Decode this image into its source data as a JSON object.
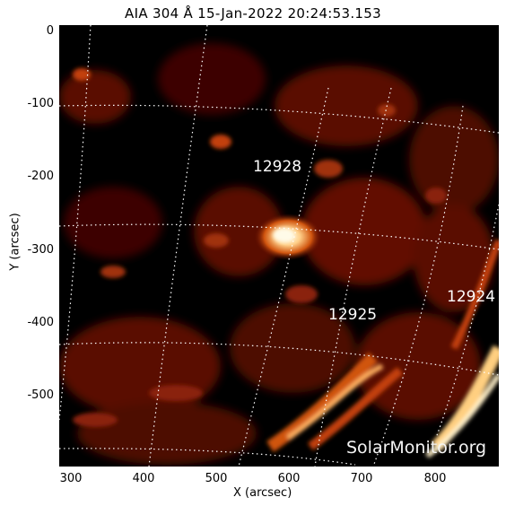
{
  "title": "AIA 304 Å 15-Jan-2022 20:24:53.153",
  "axes": {
    "x_label": "X (arcsec)",
    "y_label": "Y (arcsec)",
    "x_ticks": [
      "300",
      "400",
      "500",
      "600",
      "700",
      "800"
    ],
    "y_ticks": [
      "0",
      "-100",
      "-200",
      "-300",
      "-400",
      "-500"
    ]
  },
  "active_regions": [
    {
      "id": "ar-12928",
      "label": "12928"
    },
    {
      "id": "ar-12925",
      "label": "12925"
    },
    {
      "id": "ar-12924",
      "label": "12924"
    }
  ],
  "watermark": "SolarMonitor.org",
  "colors": {
    "background": "#000000",
    "plasma_dark": "#5a0a00",
    "plasma_mid": "#c2400a",
    "plasma_bright": "#ffd8a0",
    "grid": "#ffffff"
  }
}
